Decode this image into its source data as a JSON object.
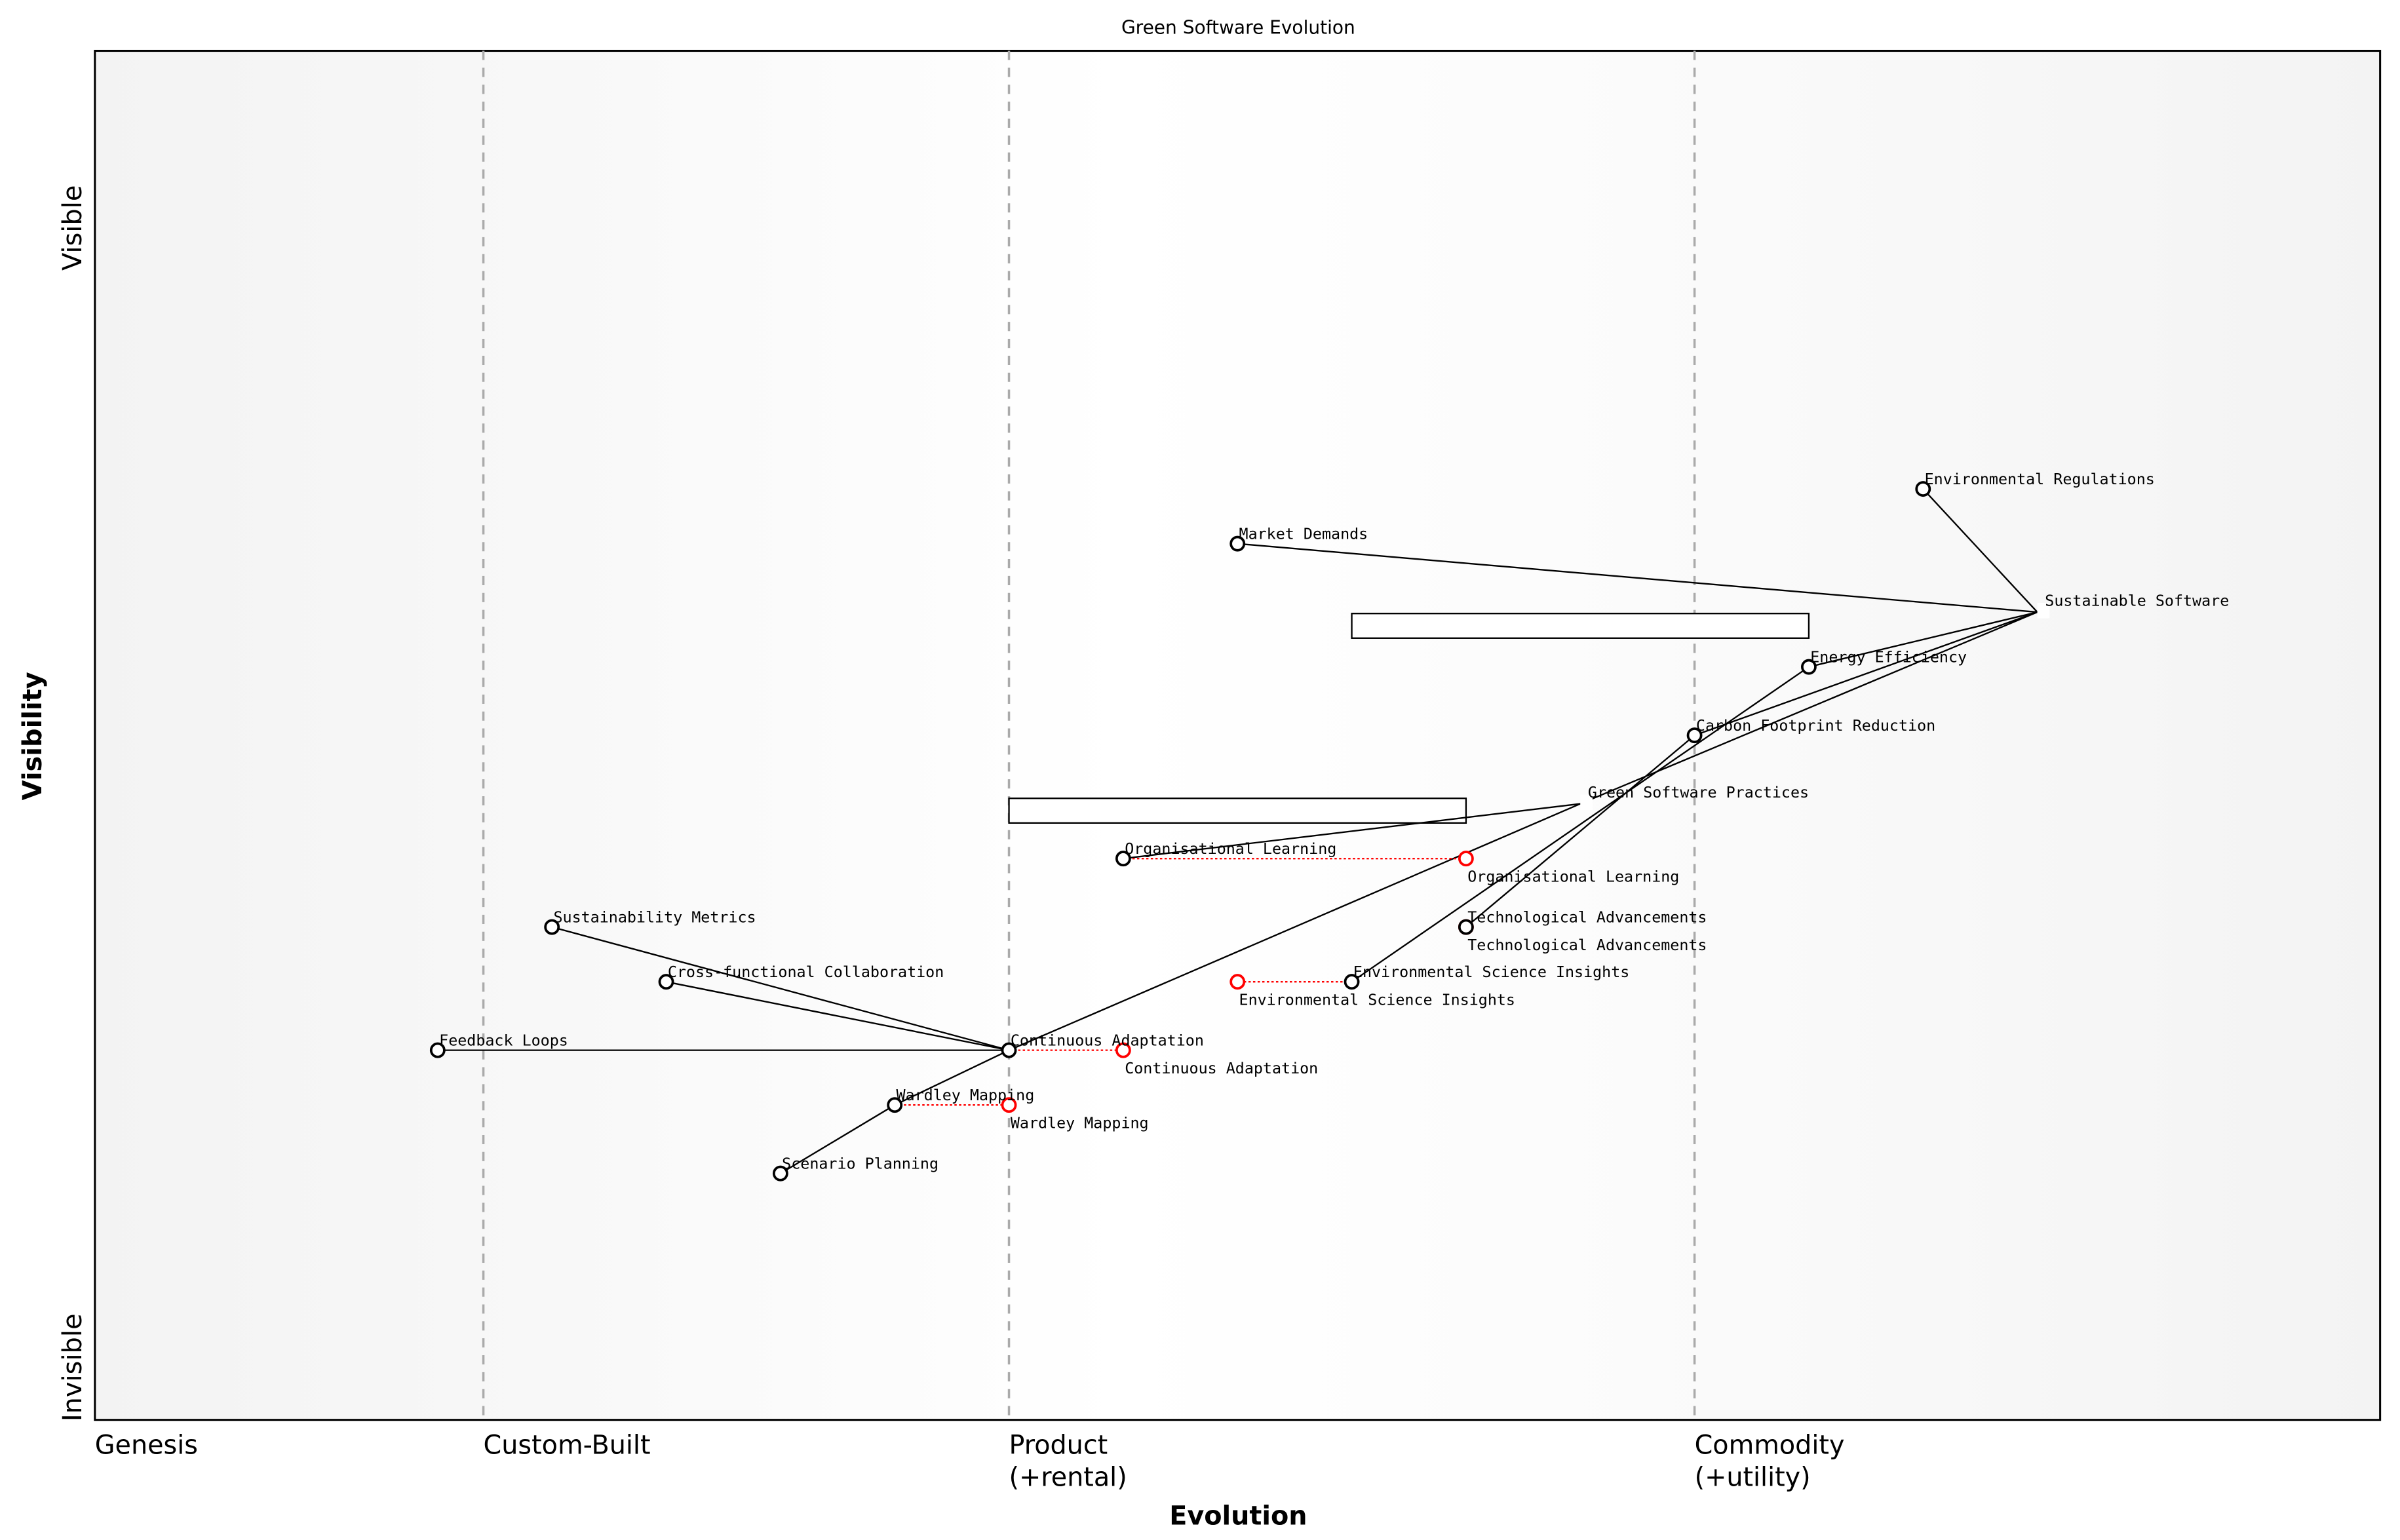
{
  "title": "Green Software Evolution",
  "axes": {
    "xlabel": "Evolution",
    "ylabel": "Visibility",
    "y_top": "Visible",
    "y_bottom": "Invisible",
    "stages": [
      {
        "label": "Genesis",
        "label2": "",
        "evolution": 0.0
      },
      {
        "label": "Custom-Built",
        "label2": "",
        "evolution": 0.17
      },
      {
        "label": "Product",
        "label2": "(+rental)",
        "evolution": 0.4
      },
      {
        "label": "Commodity",
        "label2": "(+utility)",
        "evolution": 0.7
      }
    ]
  },
  "colors": {
    "node": "#000000",
    "evolved": "#ff0000",
    "stage_line": "#aaaaaa"
  },
  "components": [
    {
      "name": "Environmental Regulations",
      "visibility": 0.68,
      "evolution": 0.8
    },
    {
      "name": "Sustainable Software",
      "visibility": 0.59,
      "evolution": 0.85,
      "hidden_marker": true
    },
    {
      "name": "Market Demands",
      "visibility": 0.64,
      "evolution": 0.5
    },
    {
      "name": "Energy Efficiency",
      "visibility": 0.55,
      "evolution": 0.75
    },
    {
      "name": "Carbon Footprint Reduction",
      "visibility": 0.5,
      "evolution": 0.7
    },
    {
      "name": "Green Software Practices",
      "visibility": 0.45,
      "evolution": 0.65,
      "hidden_marker": true
    },
    {
      "name": "Organisational Learning",
      "visibility": 0.41,
      "evolution": 0.45,
      "evolve_to": 0.6
    },
    {
      "name": "Technological Advancements",
      "visibility": 0.36,
      "evolution": 0.6,
      "evolve_to": 0.6
    },
    {
      "name": "Environmental Science Insights",
      "visibility": 0.32,
      "evolution": 0.55,
      "evolve_to": 0.5
    },
    {
      "name": "Sustainability Metrics",
      "visibility": 0.36,
      "evolution": 0.2
    },
    {
      "name": "Cross-functional Collaboration",
      "visibility": 0.32,
      "evolution": 0.25
    },
    {
      "name": "Feedback Loops",
      "visibility": 0.27,
      "evolution": 0.15
    },
    {
      "name": "Continuous Adaptation",
      "visibility": 0.27,
      "evolution": 0.4,
      "evolve_to": 0.45
    },
    {
      "name": "Wardley Mapping",
      "visibility": 0.23,
      "evolution": 0.35,
      "evolve_to": 0.4
    },
    {
      "name": "Scenario Planning",
      "visibility": 0.18,
      "evolution": 0.3
    }
  ],
  "links": [
    [
      "Environmental Regulations",
      "Sustainable Software"
    ],
    [
      "Market Demands",
      "Sustainable Software"
    ],
    [
      "Sustainable Software",
      "Energy Efficiency"
    ],
    [
      "Sustainable Software",
      "Carbon Footprint Reduction"
    ],
    [
      "Sustainable Software",
      "Green Software Practices"
    ],
    [
      "Energy Efficiency",
      "Environmental Science Insights"
    ],
    [
      "Carbon Footprint Reduction",
      "Technological Advancements"
    ],
    [
      "Green Software Practices",
      "Organisational Learning"
    ],
    [
      "Green Software Practices",
      "Continuous Adaptation"
    ],
    [
      "Sustainability Metrics",
      "Continuous Adaptation"
    ],
    [
      "Cross-functional Collaboration",
      "Continuous Adaptation"
    ],
    [
      "Feedback Loops",
      "Continuous Adaptation"
    ],
    [
      "Continuous Adaptation",
      "Wardley Mapping"
    ],
    [
      "Wardley Mapping",
      "Scenario Planning"
    ]
  ],
  "pipelines": [
    {
      "component": "Sustainable Software",
      "visibility": 0.58,
      "evolution_start": 0.55,
      "evolution_end": 0.75
    },
    {
      "component": "Green Software Practices",
      "visibility": 0.445,
      "evolution_start": 0.4,
      "evolution_end": 0.6
    }
  ]
}
